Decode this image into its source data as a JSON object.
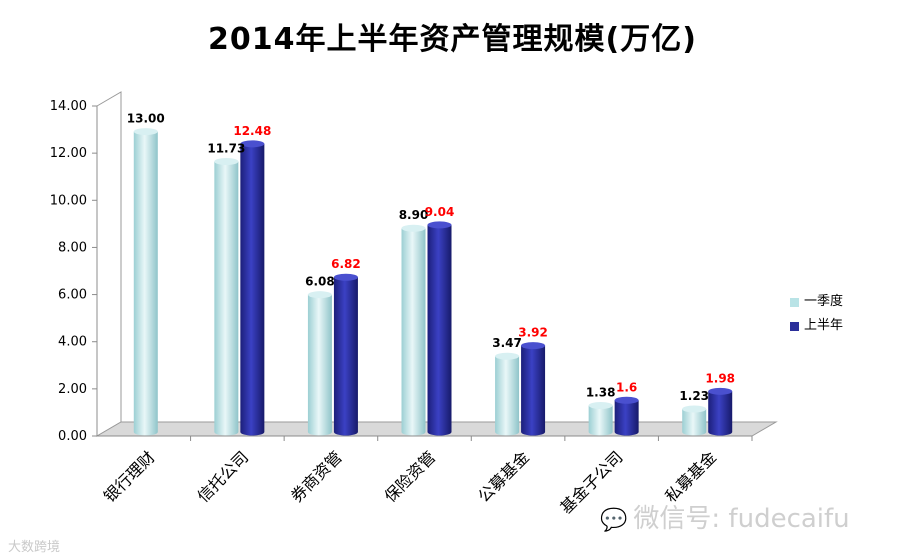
{
  "chart_data": {
    "type": "bar",
    "title": "2014年上半年资产管理规模(万亿)",
    "categories": [
      "银行理财",
      "信托公司",
      "券商资管",
      "保险资管",
      "公募基金",
      "基金子公司",
      "私募基金"
    ],
    "series": [
      {
        "name": "一季度",
        "values": [
          13.0,
          11.73,
          6.08,
          8.9,
          3.47,
          1.38,
          1.23
        ],
        "labels": [
          "13.00",
          "11.73",
          "6.08",
          "8.90",
          "3.47",
          "1.38",
          "1.23"
        ],
        "color": "#b9e3e6",
        "label_color": "#000000"
      },
      {
        "name": "上半年",
        "values": [
          null,
          12.48,
          6.82,
          9.04,
          3.92,
          1.6,
          1.98
        ],
        "labels": [
          "",
          "12.48",
          "6.82",
          "9.04",
          "3.92",
          "1.6",
          "1.98"
        ],
        "color": "#2b2f9a",
        "label_color": "#ff0000"
      }
    ],
    "ylim": [
      0,
      14
    ],
    "yticks": [
      "0.00",
      "2.00",
      "4.00",
      "6.00",
      "8.00",
      "10.00",
      "12.00",
      "14.00"
    ],
    "xlabel": "",
    "ylabel": "",
    "grid": false,
    "legend": "right"
  },
  "watermark": {
    "text": "微信号: fudecaifu",
    "icon": "wechat-icon"
  },
  "logo": {
    "text": "大数跨境"
  }
}
